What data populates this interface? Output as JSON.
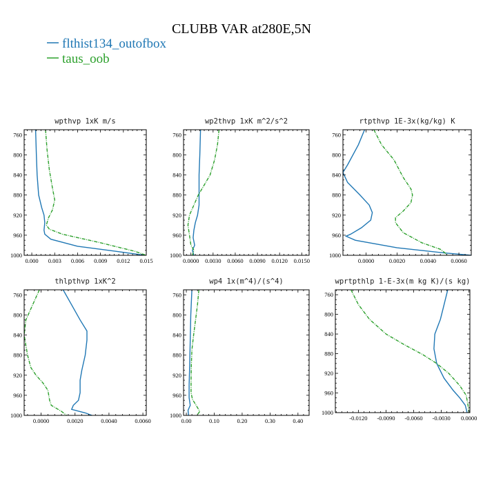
{
  "chart_data": {
    "title": "CLUBB VAR at280E,5N",
    "legend": [
      {
        "name": "flthist134_outofbox",
        "color": "#1f77b4"
      },
      {
        "name": "taus_oob",
        "color": "#2ca02c"
      }
    ],
    "panels": [
      {
        "type": "line",
        "title": "wpthvp   1xK m/s",
        "xlim": [
          -0.001,
          0.015
        ],
        "xticks": [
          0.0,
          0.003,
          0.006,
          0.009,
          0.012,
          0.015
        ],
        "xtick_labels": [
          "0.000",
          "0.003",
          "0.006",
          "0.009",
          "0.012",
          "0.015"
        ],
        "ylim": [
          1000,
          750
        ],
        "yticks": [
          760,
          800,
          840,
          880,
          920,
          960,
          1000
        ],
        "ytick_labels": [
          "760",
          "800",
          "840",
          "880",
          "920",
          "960",
          "1000"
        ],
        "series": [
          {
            "name": "flthist134_outofbox",
            "color": "#1f77b4",
            "dashed": false,
            "points": [
              [
                0.0005,
                750
              ],
              [
                0.0006,
                800
              ],
              [
                0.0007,
                840
              ],
              [
                0.0009,
                880
              ],
              [
                0.0013,
                905
              ],
              [
                0.0016,
                920
              ],
              [
                0.0017,
                935
              ],
              [
                0.0016,
                950
              ],
              [
                0.0017,
                958
              ],
              [
                0.0025,
                968
              ],
              [
                0.006,
                982
              ],
              [
                0.011,
                992
              ],
              [
                0.0148,
                1000
              ]
            ]
          },
          {
            "name": "taus_oob",
            "color": "#2ca02c",
            "dashed": true,
            "points": [
              [
                0.0018,
                750
              ],
              [
                0.002,
                790
              ],
              [
                0.0023,
                830
              ],
              [
                0.0027,
                865
              ],
              [
                0.003,
                890
              ],
              [
                0.0027,
                910
              ],
              [
                0.0022,
                925
              ],
              [
                0.0019,
                940
              ],
              [
                0.0023,
                948
              ],
              [
                0.004,
                958
              ],
              [
                0.009,
                975
              ],
              [
                0.0135,
                992
              ],
              [
                0.015,
                1000
              ]
            ]
          }
        ]
      },
      {
        "type": "line",
        "title": "wp2thvp   1xK m^2/s^2",
        "xlim": [
          -0.001,
          0.016
        ],
        "xticks": [
          0.0,
          0.003,
          0.006,
          0.009,
          0.012,
          0.015
        ],
        "xtick_labels": [
          "0.0000",
          "0.0030",
          "0.0060",
          "0.0090",
          "0.0120",
          "0.0150"
        ],
        "ylim": [
          1000,
          750
        ],
        "yticks": [
          760,
          800,
          840,
          880,
          920,
          960,
          1000
        ],
        "ytick_labels": [
          "760",
          "800",
          "840",
          "880",
          "920",
          "960",
          "1000"
        ],
        "series": [
          {
            "name": "flthist134_outofbox",
            "color": "#1f77b4",
            "dashed": false,
            "points": [
              [
                0.0013,
                750
              ],
              [
                0.0012,
                800
              ],
              [
                0.0011,
                840
              ],
              [
                0.0011,
                880
              ],
              [
                0.0011,
                900
              ],
              [
                0.0009,
                920
              ],
              [
                0.0006,
                935
              ],
              [
                0.0004,
                950
              ],
              [
                0.0003,
                965
              ],
              [
                0.0005,
                980
              ],
              [
                0.0002,
                990
              ],
              [
                0.0004,
                1000
              ]
            ]
          },
          {
            "name": "taus_oob",
            "color": "#2ca02c",
            "dashed": true,
            "points": [
              [
                0.0038,
                750
              ],
              [
                0.0036,
                780
              ],
              [
                0.0032,
                810
              ],
              [
                0.0026,
                840
              ],
              [
                0.0018,
                860
              ],
              [
                0.001,
                880
              ],
              [
                0.0004,
                900
              ],
              [
                -0.0002,
                920
              ],
              [
                -0.0004,
                940
              ],
              [
                -0.0002,
                960
              ],
              [
                0.0,
                980
              ],
              [
                0.0004,
                990
              ],
              [
                0.0002,
                1000
              ]
            ]
          }
        ]
      },
      {
        "type": "line",
        "title": "rtpthvp   1E-3x(kg/kg) K",
        "xlim": [
          -0.0015,
          0.0068
        ],
        "xticks": [
          0.0,
          0.002,
          0.004,
          0.006
        ],
        "xtick_labels": [
          "0.0000",
          "0.0020",
          "0.0040",
          "0.0060"
        ],
        "ylim": [
          1000,
          750
        ],
        "yticks": [
          760,
          800,
          840,
          880,
          920,
          960,
          1000
        ],
        "ytick_labels": [
          "760",
          "800",
          "840",
          "880",
          "920",
          "960",
          "1000"
        ],
        "series": [
          {
            "name": "flthist134_outofbox",
            "color": "#1f77b4",
            "dashed": false,
            "points": [
              [
                -0.0001,
                750
              ],
              [
                -0.0005,
                780
              ],
              [
                -0.0012,
                820
              ],
              [
                -0.0015,
                835
              ],
              [
                -0.0012,
                855
              ],
              [
                -0.0004,
                880
              ],
              [
                0.0002,
                900
              ],
              [
                0.0004,
                915
              ],
              [
                0.0003,
                930
              ],
              [
                -0.0003,
                945
              ],
              [
                -0.001,
                958
              ],
              [
                -0.0013,
                962
              ],
              [
                -0.0007,
                970
              ],
              [
                0.002,
                985
              ],
              [
                0.005,
                995
              ],
              [
                0.0068,
                1000
              ]
            ]
          },
          {
            "name": "taus_oob",
            "color": "#2ca02c",
            "dashed": true,
            "points": [
              [
                0.0005,
                750
              ],
              [
                0.001,
                780
              ],
              [
                0.0018,
                810
              ],
              [
                0.0024,
                845
              ],
              [
                0.0029,
                868
              ],
              [
                0.003,
                880
              ],
              [
                0.0029,
                895
              ],
              [
                0.0024,
                912
              ],
              [
                0.0019,
                925
              ],
              [
                0.0019,
                935
              ],
              [
                0.0024,
                955
              ],
              [
                0.0036,
                975
              ],
              [
                0.0048,
                988
              ],
              [
                0.0053,
                1000
              ]
            ]
          }
        ]
      },
      {
        "type": "line",
        "title": "thlpthvp   1xK^2",
        "xlim": [
          -0.001,
          0.0062
        ],
        "xticks": [
          0.0,
          0.002,
          0.004,
          0.006
        ],
        "xtick_labels": [
          "0.0000",
          "0.0020",
          "0.0040",
          "0.0060"
        ],
        "ylim": [
          1000,
          750
        ],
        "yticks": [
          760,
          800,
          840,
          880,
          920,
          960,
          1000
        ],
        "ytick_labels": [
          "760",
          "800",
          "840",
          "880",
          "920",
          "960",
          "1000"
        ],
        "series": [
          {
            "name": "flthist134_outofbox",
            "color": "#1f77b4",
            "dashed": false,
            "points": [
              [
                0.0013,
                750
              ],
              [
                0.0018,
                780
              ],
              [
                0.0023,
                810
              ],
              [
                0.0027,
                832
              ],
              [
                0.0027,
                850
              ],
              [
                0.0026,
                880
              ],
              [
                0.0024,
                910
              ],
              [
                0.0023,
                930
              ],
              [
                0.0023,
                955
              ],
              [
                0.0022,
                970
              ],
              [
                0.0019,
                980
              ],
              [
                0.0018,
                988
              ],
              [
                0.0026,
                995
              ],
              [
                0.003,
                1000
              ]
            ]
          },
          {
            "name": "taus_oob",
            "color": "#2ca02c",
            "dashed": true,
            "points": [
              [
                -0.0001,
                750
              ],
              [
                -0.0005,
                780
              ],
              [
                -0.0009,
                810
              ],
              [
                -0.001,
                840
              ],
              [
                -0.0008,
                880
              ],
              [
                -0.0006,
                905
              ],
              [
                -0.0003,
                920
              ],
              [
                0.0001,
                935
              ],
              [
                0.0004,
                950
              ],
              [
                0.0005,
                970
              ],
              [
                0.0006,
                980
              ],
              [
                0.0012,
                992
              ],
              [
                0.0015,
                1000
              ]
            ]
          }
        ]
      },
      {
        "type": "line",
        "title": "wp4   1x(m^4)/(s^4)",
        "xlim": [
          -0.01,
          0.44
        ],
        "xticks": [
          0.0,
          0.1,
          0.2,
          0.3,
          0.4
        ],
        "xtick_labels": [
          "0.00",
          "0.10",
          "0.20",
          "0.30",
          "0.40"
        ],
        "ylim": [
          1000,
          750
        ],
        "yticks": [
          760,
          800,
          840,
          880,
          920,
          960,
          1000
        ],
        "ytick_labels": [
          "760",
          "800",
          "840",
          "880",
          "920",
          "960",
          "1000"
        ],
        "series": [
          {
            "name": "flthist134_outofbox",
            "color": "#1f77b4",
            "dashed": false,
            "points": [
              [
                0.02,
                750
              ],
              [
                0.016,
                800
              ],
              [
                0.014,
                850
              ],
              [
                0.012,
                900
              ],
              [
                0.01,
                940
              ],
              [
                0.01,
                965
              ],
              [
                0.014,
                980
              ],
              [
                0.006,
                990
              ],
              [
                0.008,
                1000
              ]
            ]
          },
          {
            "name": "taus_oob",
            "color": "#2ca02c",
            "dashed": true,
            "points": [
              [
                0.045,
                750
              ],
              [
                0.04,
                780
              ],
              [
                0.033,
                810
              ],
              [
                0.026,
                840
              ],
              [
                0.02,
                870
              ],
              [
                0.018,
                900
              ],
              [
                0.017,
                930
              ],
              [
                0.017,
                955
              ],
              [
                0.022,
                968
              ],
              [
                0.035,
                980
              ],
              [
                0.048,
                992
              ],
              [
                0.038,
                1000
              ]
            ]
          }
        ]
      },
      {
        "type": "line",
        "title": "wprtpthlp   1-E-3x(m kg K)/(s kg)",
        "xlim": [
          -0.0145,
          0.0001
        ],
        "xticks": [
          -0.012,
          -0.009,
          -0.006,
          -0.003,
          0.0
        ],
        "xtick_labels": [
          "-0.0120",
          "-0.0090",
          "-0.0060",
          "-0.0030",
          "0.0000"
        ],
        "ylim": [
          1000,
          750
        ],
        "yticks": [
          760,
          800,
          840,
          880,
          920,
          960,
          1000
        ],
        "ytick_labels": [
          "760",
          "800",
          "840",
          "880",
          "920",
          "960",
          "1000"
        ],
        "series": [
          {
            "name": "flthist134_outofbox",
            "color": "#1f77b4",
            "dashed": false,
            "points": [
              [
                -0.0023,
                750
              ],
              [
                -0.0027,
                780
              ],
              [
                -0.0031,
                810
              ],
              [
                -0.0037,
                840
              ],
              [
                -0.0038,
                870
              ],
              [
                -0.0035,
                900
              ],
              [
                -0.0027,
                930
              ],
              [
                -0.0017,
                955
              ],
              [
                -0.001,
                970
              ],
              [
                -0.0004,
                985
              ],
              [
                -0.0002,
                1000
              ]
            ]
          },
          {
            "name": "taus_oob",
            "color": "#2ca02c",
            "dashed": true,
            "points": [
              [
                -0.0128,
                750
              ],
              [
                -0.012,
                780
              ],
              [
                -0.0108,
                810
              ],
              [
                -0.009,
                840
              ],
              [
                -0.007,
                862
              ],
              [
                -0.005,
                882
              ],
              [
                -0.0035,
                900
              ],
              [
                -0.0022,
                920
              ],
              [
                -0.001,
                945
              ],
              [
                -0.0003,
                965
              ],
              [
                -0.0001,
                985
              ],
              [
                0.0,
                1000
              ]
            ]
          }
        ]
      }
    ]
  }
}
